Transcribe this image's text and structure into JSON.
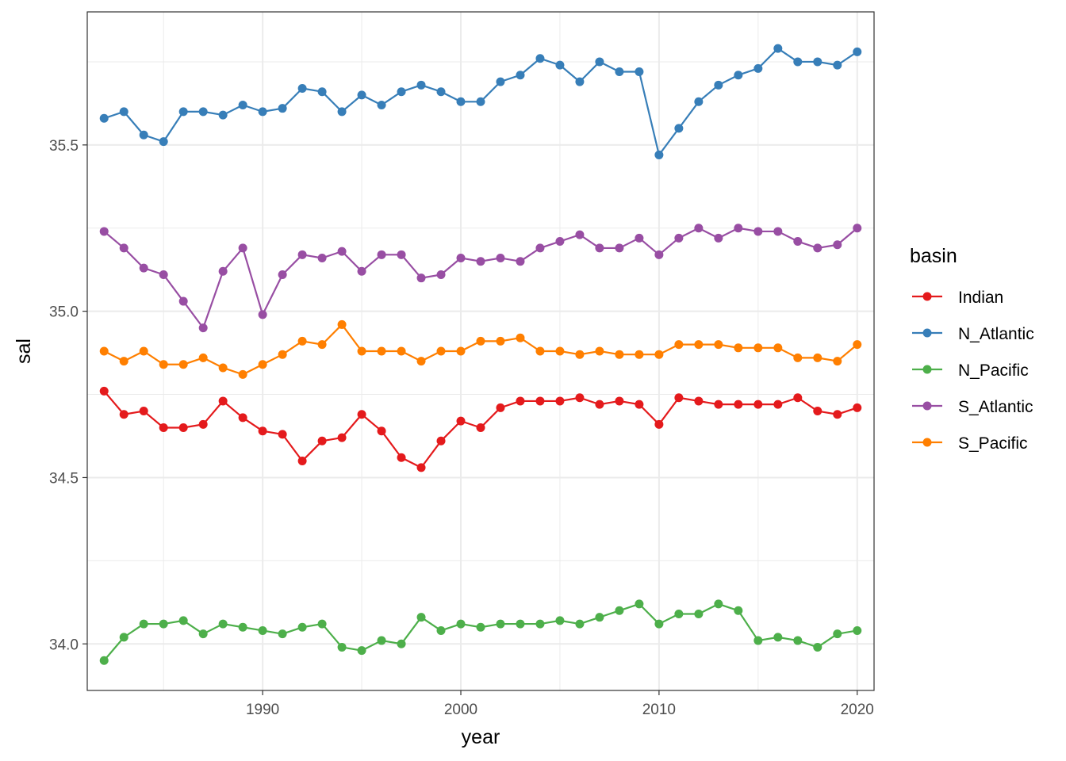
{
  "chart_data": {
    "type": "line",
    "xlabel": "year",
    "ylabel": "sal",
    "xlim": [
      1981.15,
      2020.85
    ],
    "ylim": [
      33.86,
      35.9
    ],
    "x_ticks": [
      1990,
      2000,
      2010,
      2020
    ],
    "y_ticks": [
      34.0,
      34.5,
      35.0,
      35.5
    ],
    "x_tick_labels": [
      "1990",
      "2000",
      "2010",
      "2020"
    ],
    "y_tick_labels": [
      "34.0",
      "34.5",
      "35.0",
      "35.5"
    ],
    "grid": true,
    "legend_title": "basin",
    "legend_position": "right",
    "x": [
      1982,
      1983,
      1984,
      1985,
      1986,
      1987,
      1988,
      1989,
      1990,
      1991,
      1992,
      1993,
      1994,
      1995,
      1996,
      1997,
      1998,
      1999,
      2000,
      2001,
      2002,
      2003,
      2004,
      2005,
      2006,
      2007,
      2008,
      2009,
      2010,
      2011,
      2012,
      2013,
      2014,
      2015,
      2016,
      2017,
      2018,
      2019,
      2020
    ],
    "series": [
      {
        "name": "Indian",
        "color": "#e41a1c",
        "values": [
          34.76,
          34.69,
          34.7,
          34.65,
          34.65,
          34.66,
          34.73,
          34.68,
          34.64,
          34.63,
          34.55,
          34.61,
          34.62,
          34.69,
          34.64,
          34.56,
          34.53,
          34.61,
          34.67,
          34.65,
          34.71,
          34.73,
          34.73,
          34.73,
          34.74,
          34.72,
          34.73,
          34.72,
          34.66,
          34.74,
          34.73,
          34.72,
          34.72,
          34.72,
          34.72,
          34.74,
          34.7,
          34.69,
          34.71
        ]
      },
      {
        "name": "N_Atlantic",
        "color": "#377eb8",
        "values": [
          35.58,
          35.6,
          35.53,
          35.51,
          35.6,
          35.6,
          35.59,
          35.62,
          35.6,
          35.61,
          35.67,
          35.66,
          35.6,
          35.65,
          35.62,
          35.66,
          35.68,
          35.66,
          35.63,
          35.63,
          35.69,
          35.71,
          35.76,
          35.74,
          35.69,
          35.75,
          35.72,
          35.72,
          35.47,
          35.55,
          35.63,
          35.68,
          35.71,
          35.73,
          35.79,
          35.75,
          35.75,
          35.74,
          35.78
        ]
      },
      {
        "name": "N_Pacific",
        "color": "#4daf4a",
        "values": [
          33.95,
          34.02,
          34.06,
          34.06,
          34.07,
          34.03,
          34.06,
          34.05,
          34.04,
          34.03,
          34.05,
          34.06,
          33.99,
          33.98,
          34.01,
          34.0,
          34.08,
          34.04,
          34.06,
          34.05,
          34.06,
          34.06,
          34.06,
          34.07,
          34.06,
          34.08,
          34.1,
          34.12,
          34.06,
          34.09,
          34.09,
          34.12,
          34.1,
          34.01,
          34.02,
          34.01,
          33.99,
          34.03,
          34.04
        ]
      },
      {
        "name": "S_Atlantic",
        "color": "#984ea3",
        "values": [
          35.24,
          35.19,
          35.13,
          35.11,
          35.03,
          34.95,
          35.12,
          35.19,
          34.99,
          35.11,
          35.17,
          35.16,
          35.18,
          35.12,
          35.17,
          35.17,
          35.1,
          35.11,
          35.16,
          35.15,
          35.16,
          35.15,
          35.19,
          35.21,
          35.23,
          35.19,
          35.19,
          35.22,
          35.17,
          35.22,
          35.25,
          35.22,
          35.25,
          35.24,
          35.24,
          35.21,
          35.19,
          35.2,
          35.25
        ]
      },
      {
        "name": "S_Pacific",
        "color": "#ff7f00",
        "values": [
          34.88,
          34.85,
          34.88,
          34.84,
          34.84,
          34.86,
          34.83,
          34.81,
          34.84,
          34.87,
          34.91,
          34.9,
          34.96,
          34.88,
          34.88,
          34.88,
          34.85,
          34.88,
          34.88,
          34.91,
          34.91,
          34.92,
          34.88,
          34.88,
          34.87,
          34.88,
          34.87,
          34.87,
          34.87,
          34.9,
          34.9,
          34.9,
          34.89,
          34.89,
          34.89,
          34.86,
          34.86,
          34.85,
          34.9
        ]
      }
    ]
  }
}
